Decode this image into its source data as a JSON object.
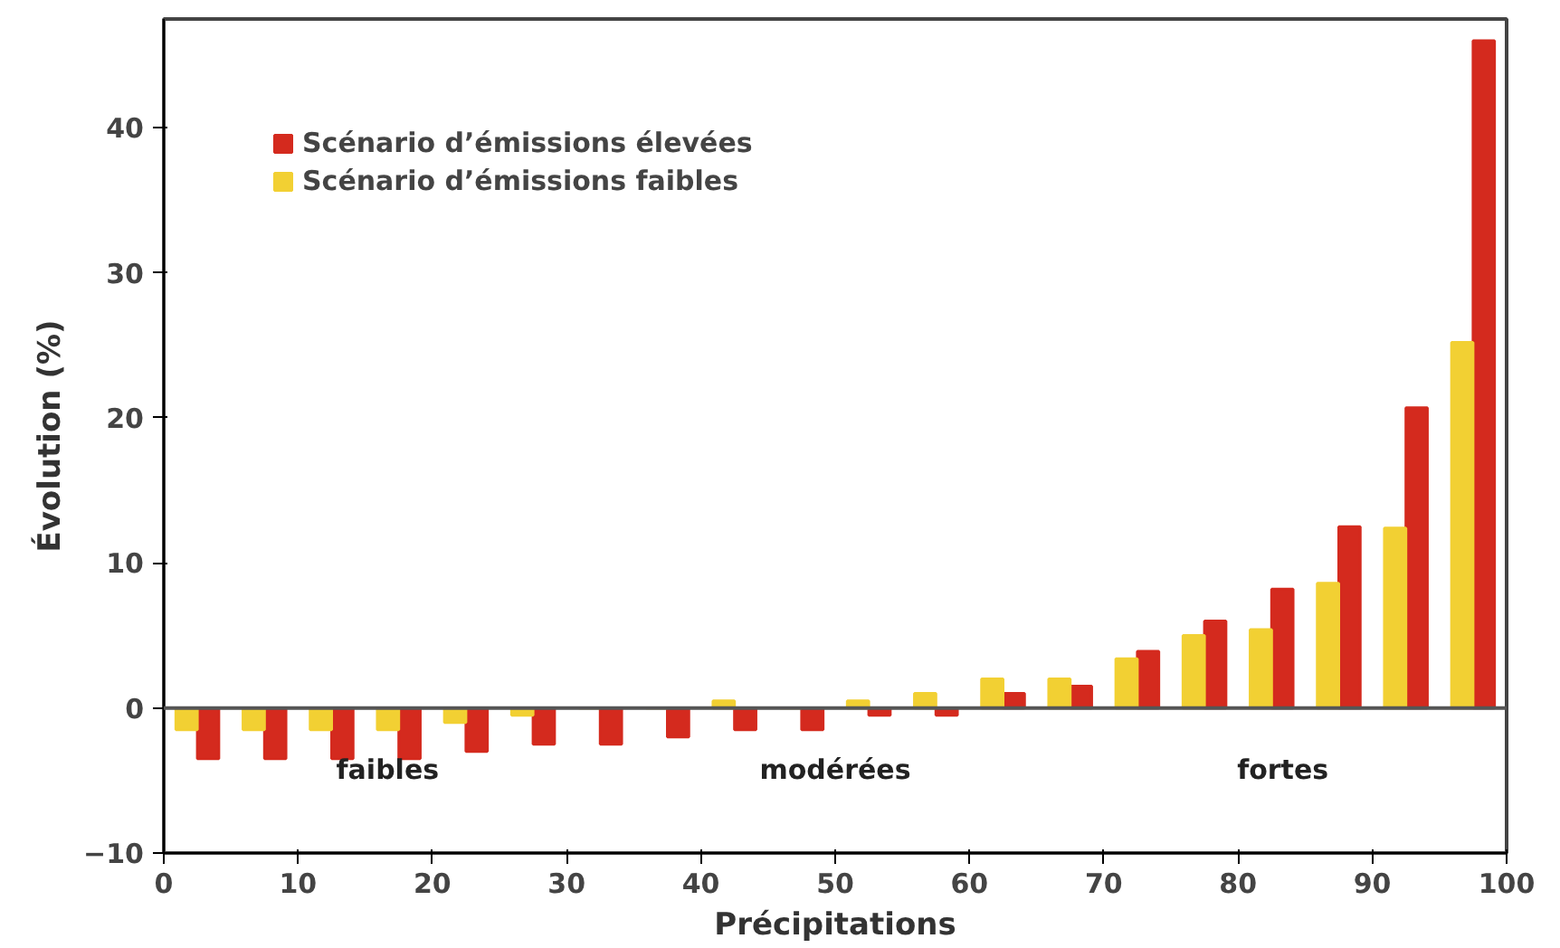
{
  "chart_data": {
    "type": "bar",
    "xlabel": "Précipitations",
    "ylabel": "Évolution (%)",
    "x": [
      2.5,
      7.5,
      12.5,
      17.5,
      22.5,
      27.5,
      32.5,
      37.5,
      42.5,
      47.5,
      52.5,
      57.5,
      62.5,
      67.5,
      72.5,
      77.5,
      82.5,
      87.5,
      92.5,
      97.5
    ],
    "series": [
      {
        "name": "Scénario d’émissions élevées",
        "color": "#d42a1e",
        "values": [
          -3.5,
          -3.5,
          -3.5,
          -3.5,
          -3,
          -2.5,
          -2.5,
          -2,
          -1.5,
          -1.5,
          -0.5,
          -0.5,
          1,
          1.5,
          3.9,
          6,
          8.2,
          12.5,
          20.7,
          46
        ]
      },
      {
        "name": "Scénario d’émissions faibles",
        "color": "#f2d033",
        "values": [
          -1.5,
          -1.5,
          -1.5,
          -1.5,
          -1,
          -0.5,
          0,
          0,
          0.5,
          0,
          0.5,
          1,
          2,
          2,
          3.4,
          5,
          5.4,
          8.6,
          12.4,
          25.2
        ]
      }
    ],
    "xlim": [
      0,
      100
    ],
    "ylim": [
      -10,
      47.5
    ],
    "xticks": [
      0,
      10,
      20,
      30,
      40,
      50,
      60,
      70,
      80,
      90,
      100
    ],
    "yticks": [
      -10,
      0,
      10,
      20,
      30,
      40
    ],
    "ref_lines": [
      {
        "axis": "y",
        "value": 0
      }
    ],
    "annotations": [
      "faibles",
      "modérées",
      "fortes"
    ],
    "grid": false,
    "legend": "top left"
  }
}
